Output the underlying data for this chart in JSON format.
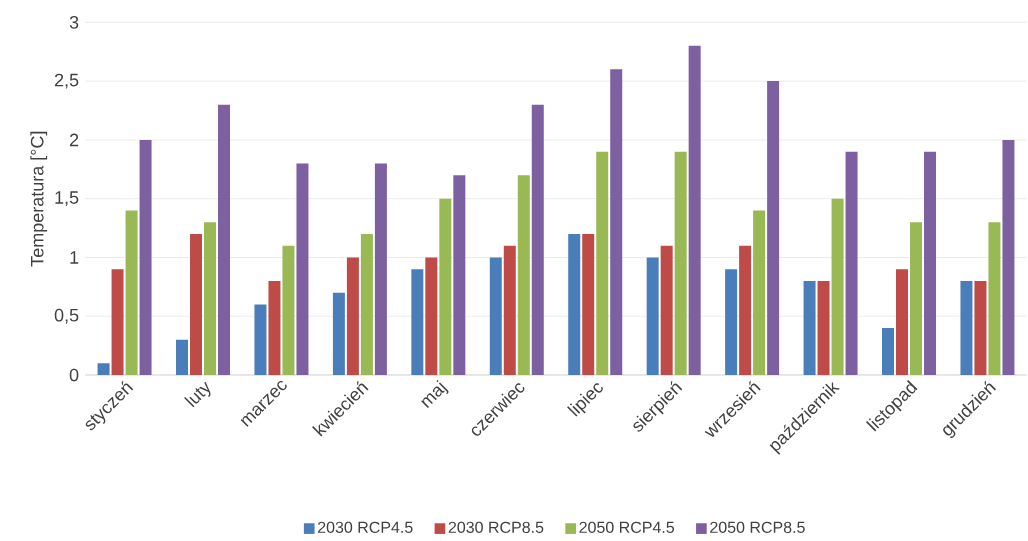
{
  "chart_data": {
    "type": "bar",
    "ylabel": "Temperatura [°C]",
    "categories": [
      "styczeń",
      "luty",
      "marzec",
      "kwiecień",
      "maj",
      "czerwiec",
      "lipiec",
      "sierpień",
      "wrzesień",
      "październik",
      "listopad",
      "grudzień"
    ],
    "series": [
      {
        "name": "2030 RCP4.5",
        "color": "#4a7ebb",
        "values": [
          0.1,
          0.3,
          0.6,
          0.7,
          0.9,
          1.0,
          1.2,
          1.0,
          0.9,
          0.8,
          0.4,
          0.8
        ]
      },
      {
        "name": "2030 RCP8.5",
        "color": "#be4b48",
        "values": [
          0.9,
          1.2,
          0.8,
          1.0,
          1.0,
          1.1,
          1.2,
          1.1,
          1.1,
          0.8,
          0.9,
          0.8
        ]
      },
      {
        "name": "2050 RCP4.5",
        "color": "#98b954",
        "values": [
          1.4,
          1.3,
          1.1,
          1.2,
          1.5,
          1.7,
          1.9,
          1.9,
          1.4,
          1.5,
          1.3,
          1.3
        ]
      },
      {
        "name": "2050 RCP8.5",
        "color": "#7d60a0",
        "values": [
          2.0,
          2.3,
          1.8,
          1.8,
          1.7,
          2.3,
          2.6,
          2.8,
          2.5,
          1.9,
          1.9,
          2.0
        ]
      }
    ],
    "ylim": [
      0,
      3
    ],
    "yticks": [
      0,
      {
        "value": 0.5,
        "label": "0,5"
      },
      1,
      {
        "value": 1.5,
        "label": "1,5"
      },
      2,
      {
        "value": 2.5,
        "label": "2,5"
      },
      3
    ],
    "grid": "y",
    "legend": "bottom"
  }
}
